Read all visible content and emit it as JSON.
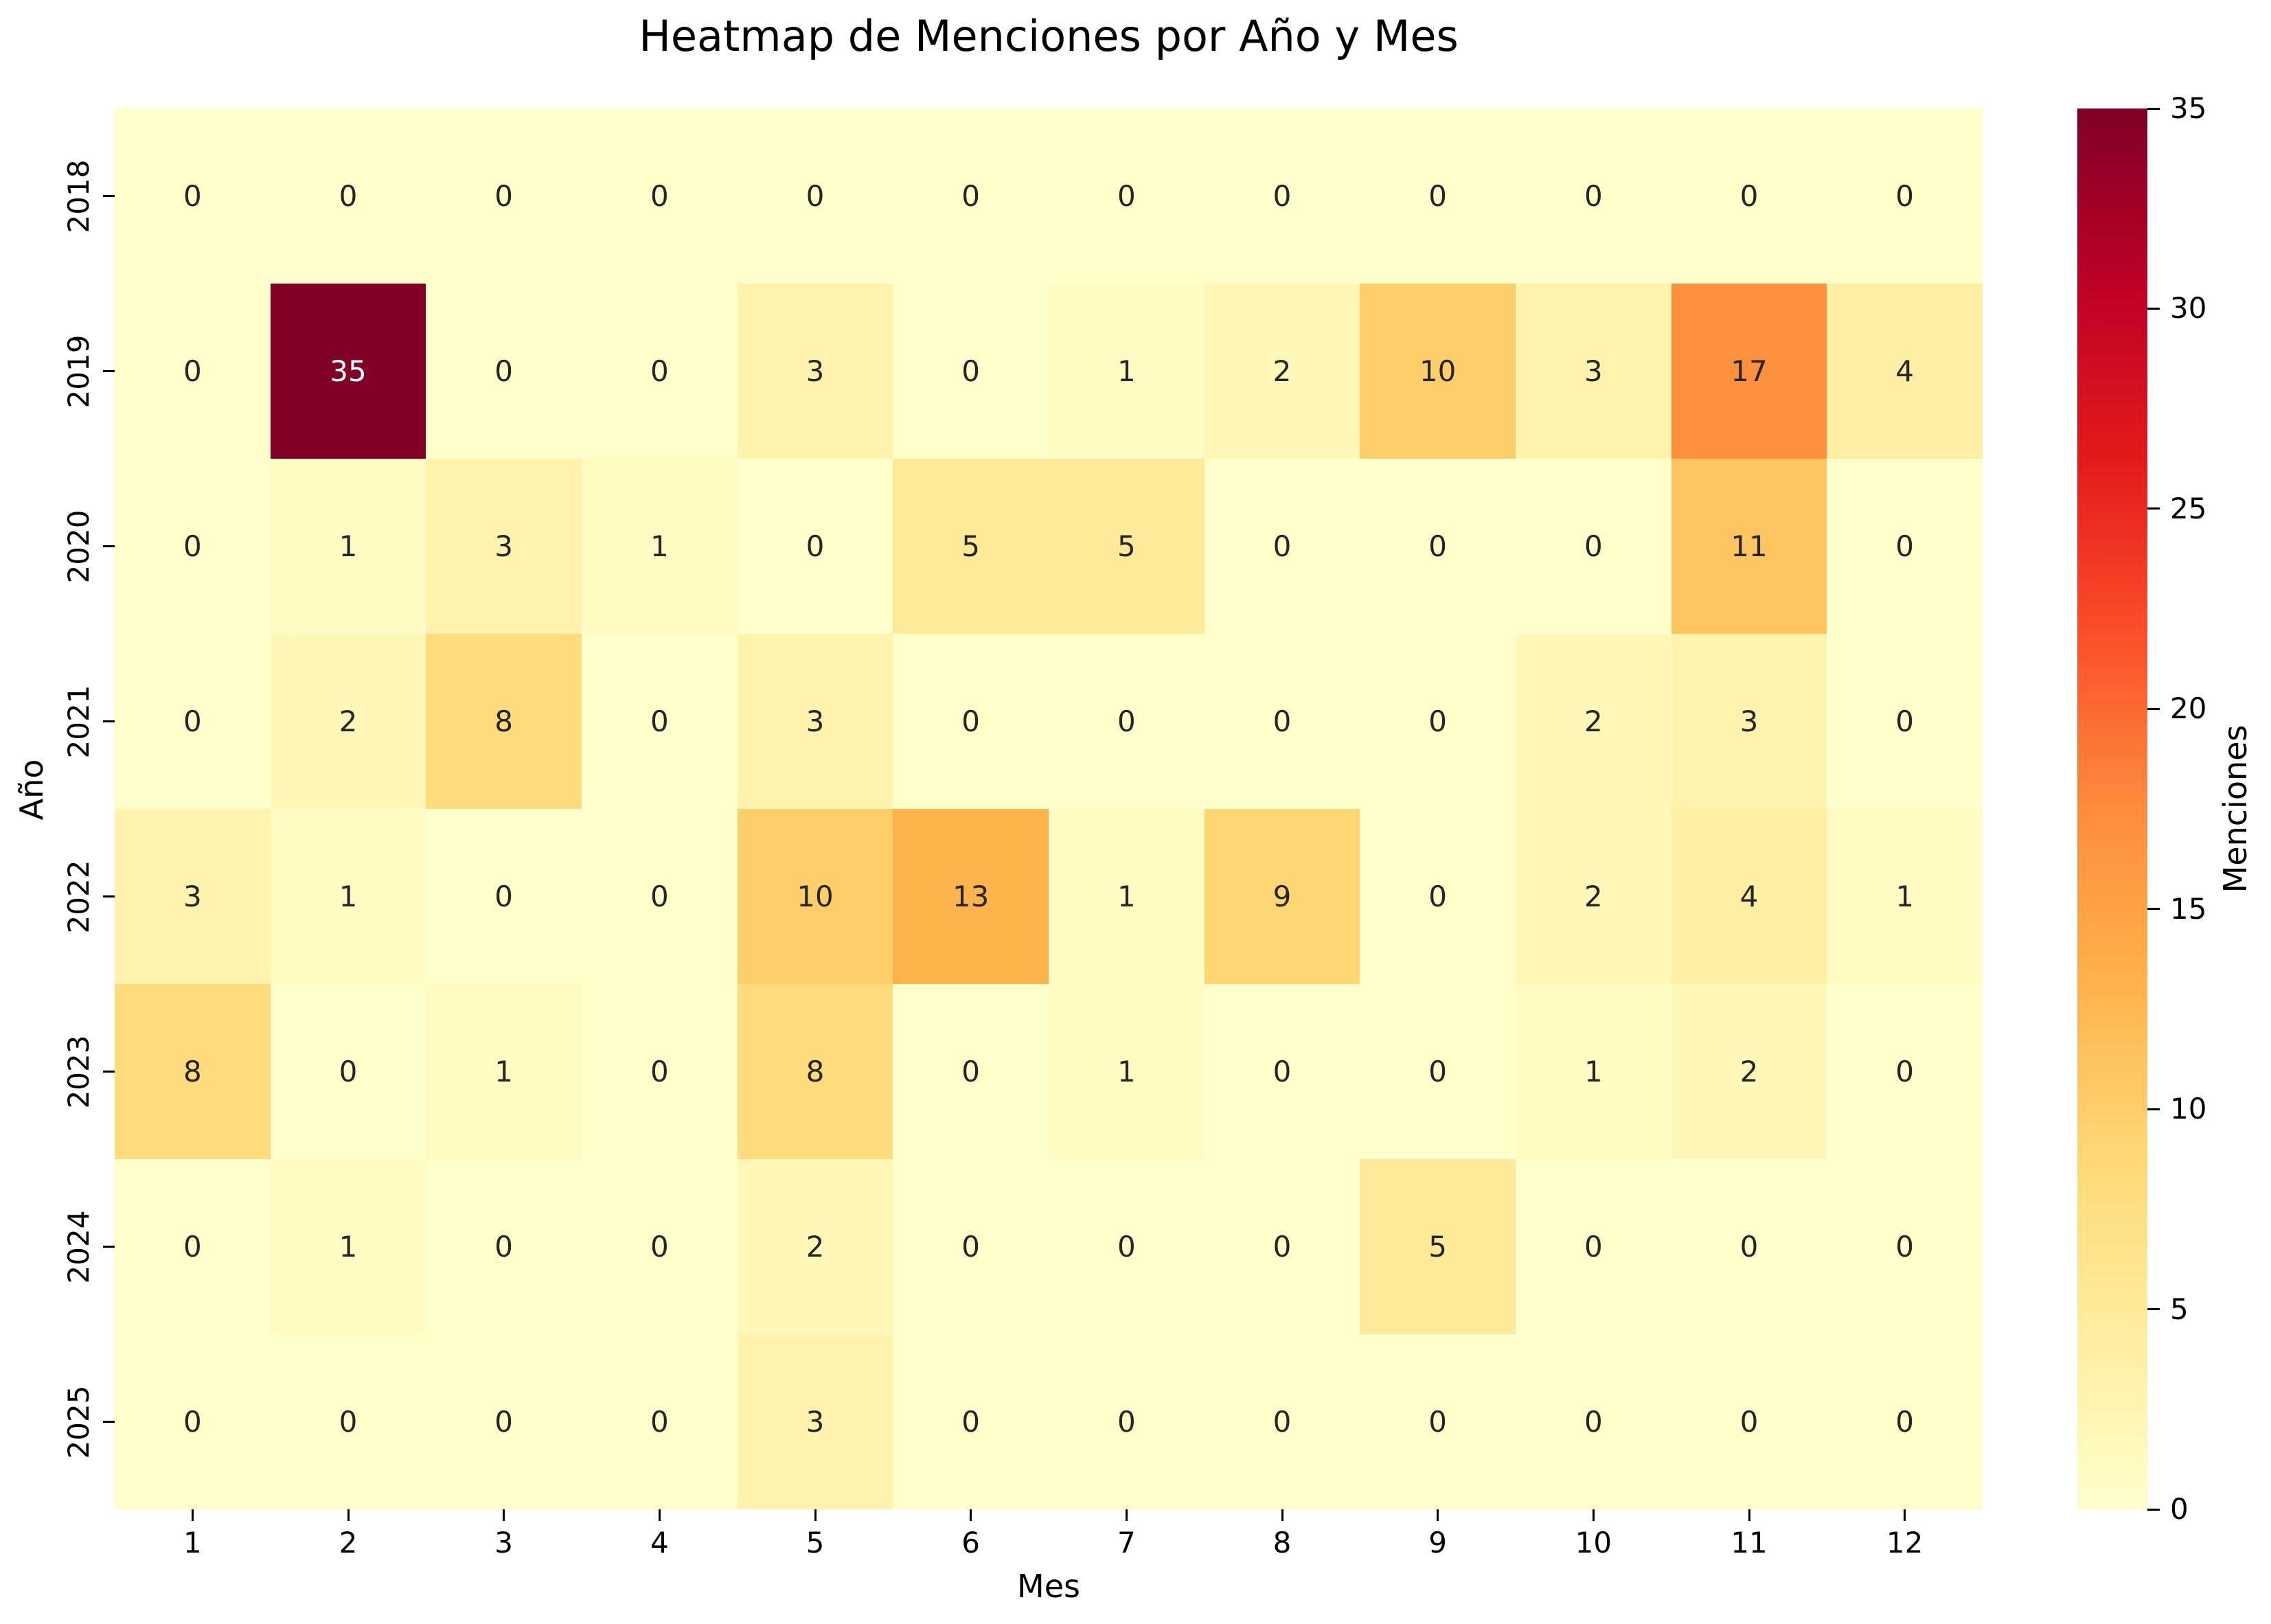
{
  "chart_data": {
    "type": "heatmap",
    "title": "Heatmap de Menciones por Año y Mes",
    "xlabel": "Mes",
    "ylabel": "Año",
    "colorbar_label": "Menciones",
    "x_categories": [
      "1",
      "2",
      "3",
      "4",
      "5",
      "6",
      "7",
      "8",
      "9",
      "10",
      "11",
      "12"
    ],
    "y_categories": [
      "2018",
      "2019",
      "2020",
      "2021",
      "2022",
      "2023",
      "2024",
      "2025"
    ],
    "values": [
      [
        0,
        0,
        0,
        0,
        0,
        0,
        0,
        0,
        0,
        0,
        0,
        0
      ],
      [
        0,
        35,
        0,
        0,
        3,
        0,
        1,
        2,
        10,
        3,
        17,
        4
      ],
      [
        0,
        1,
        3,
        1,
        0,
        5,
        5,
        0,
        0,
        0,
        11,
        0
      ],
      [
        0,
        2,
        8,
        0,
        3,
        0,
        0,
        0,
        0,
        2,
        3,
        0
      ],
      [
        3,
        1,
        0,
        0,
        10,
        13,
        1,
        9,
        0,
        2,
        4,
        1
      ],
      [
        8,
        0,
        1,
        0,
        8,
        0,
        1,
        0,
        0,
        1,
        2,
        0
      ],
      [
        0,
        1,
        0,
        0,
        2,
        0,
        0,
        0,
        5,
        0,
        0,
        0
      ],
      [
        0,
        0,
        0,
        0,
        3,
        0,
        0,
        0,
        0,
        0,
        0,
        0
      ]
    ],
    "vmin": 0,
    "vmax": 35,
    "colorbar_ticks": [
      0,
      5,
      10,
      15,
      20,
      25,
      30,
      35
    ],
    "colormap": {
      "name": "YlOrRd",
      "anchors": [
        "#ffffcc",
        "#ffeda0",
        "#fed976",
        "#feb24c",
        "#fd8d3c",
        "#fc4e2a",
        "#e31a1c",
        "#bd0026",
        "#800026"
      ]
    },
    "annotation_dark_text": "#262626",
    "annotation_light_text": "#ffffff",
    "axis_text_color": "#000000",
    "background": "#ffffff",
    "legend_position": "right",
    "grid": false
  }
}
